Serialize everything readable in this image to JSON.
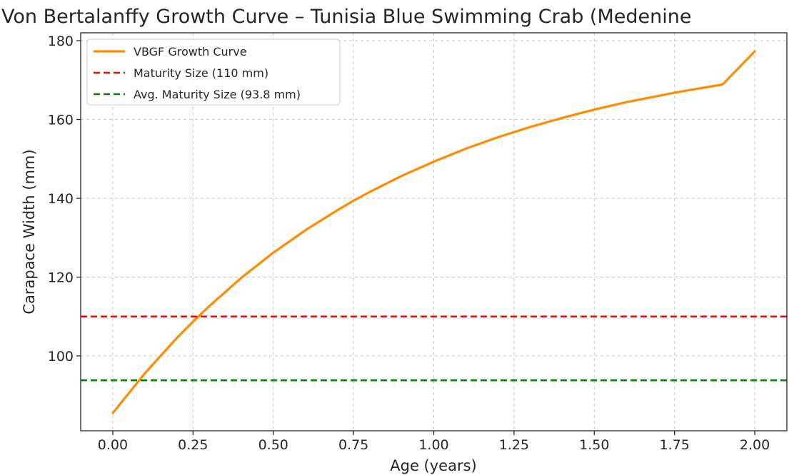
{
  "chart_data": {
    "type": "line",
    "title": "Von Bertalanffy Growth Curve – Tunisia Blue Swimming Crab (Medenine",
    "xlabel": "Age (years)",
    "ylabel": "Carapace Width (mm)",
    "xlim": [
      -0.1,
      2.1
    ],
    "ylim": [
      81,
      182
    ],
    "xticks": [
      0,
      0.25,
      0.5,
      0.75,
      1,
      1.25,
      1.5,
      1.75,
      2
    ],
    "xtick_labels": [
      "0.00",
      "0.25",
      "0.50",
      "0.75",
      "1.00",
      "1.25",
      "1.50",
      "1.75",
      "2.00"
    ],
    "yticks": [
      100,
      120,
      140,
      160,
      180
    ],
    "ytick_labels": [
      "100",
      "120",
      "140",
      "160",
      "180"
    ],
    "grid": true,
    "legend_position": "top-left",
    "series": [
      {
        "name": "VBGF Growth Curve",
        "style": "solid",
        "color": "#ff8c00",
        "x": [
          0,
          0.1,
          0.2,
          0.25,
          0.3,
          0.4,
          0.5,
          0.6,
          0.7,
          0.75,
          0.8,
          0.9,
          1.0,
          1.1,
          1.2,
          1.25,
          1.3,
          1.4,
          1.5,
          1.6,
          1.7,
          1.75,
          1.8,
          1.9,
          2.0
        ],
        "y": [
          85.5,
          95.6,
          104.6,
          108.7,
          112.6,
          119.8,
          126.2,
          131.9,
          137.0,
          139.4,
          141.6,
          145.7,
          149.3,
          152.6,
          155.5,
          156.8,
          158.1,
          160.4,
          162.5,
          164.4,
          166.0,
          166.8,
          167.5,
          168.9,
          177.3
        ]
      },
      {
        "name": "Maturity Size (110 mm)",
        "style": "dashed",
        "color": "#ff0000",
        "y": 110
      },
      {
        "name": "Avg. Maturity Size (93.8 mm)",
        "style": "dashed",
        "color": "#008000",
        "y": 93.8
      }
    ]
  }
}
